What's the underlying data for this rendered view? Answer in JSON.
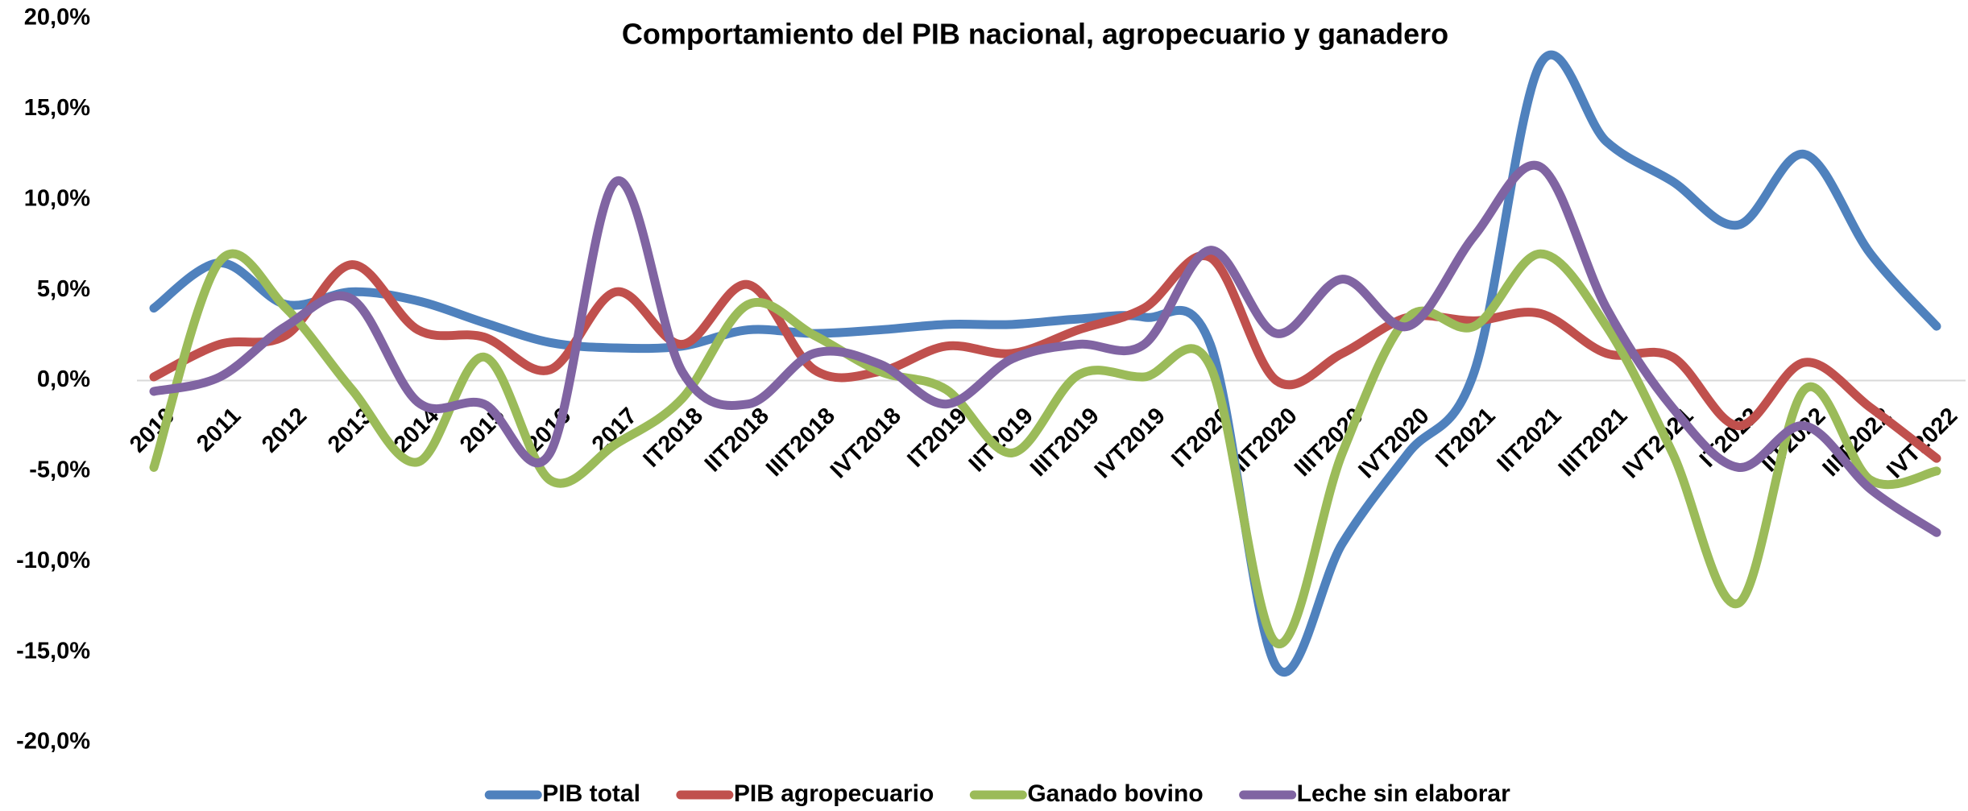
{
  "chart_data": {
    "type": "line",
    "title": "Comportamiento del PIB nacional, agropecuario y ganadero",
    "categories": [
      "2010",
      "2011",
      "2012",
      "2013",
      "2014",
      "2015",
      "2016",
      "2017",
      "IT2018",
      "IIT2018",
      "IIIT2018",
      "IVT2018",
      "IT2019",
      "IIT2019",
      "IIIT2019",
      "IVT2019",
      "IT2020",
      "IIT2020",
      "IIIT2020",
      "IVT2020",
      "IT2021",
      "IIT2021",
      "IIIT2021",
      "IVT2021",
      "IT2022",
      "IIT2022",
      "IIIT2022",
      "IVT2022"
    ],
    "series": [
      {
        "name": "PIB total",
        "color": "#4f81bd",
        "values": [
          4.0,
          6.5,
          4.2,
          4.9,
          4.4,
          3.2,
          2.1,
          1.8,
          1.9,
          2.8,
          2.6,
          2.8,
          3.1,
          3.1,
          3.4,
          3.5,
          2.0,
          -15.8,
          -9.0,
          -4.0,
          0.5,
          17.5,
          13.2,
          11.0,
          8.6,
          12.5,
          7.0,
          3.0
        ]
      },
      {
        "name": "PIB agropecuario",
        "color": "#c0504d",
        "values": [
          0.2,
          2.0,
          2.5,
          6.4,
          2.8,
          2.4,
          0.6,
          4.9,
          2.0,
          5.3,
          0.6,
          0.5,
          1.9,
          1.5,
          2.8,
          4.0,
          6.8,
          0.0,
          1.5,
          3.5,
          3.3,
          3.7,
          1.5,
          1.3,
          -2.5,
          1.0,
          -1.5,
          -4.3
        ]
      },
      {
        "name": "Ganado bovino",
        "color": "#9bbb59",
        "values": [
          -4.8,
          6.6,
          4.0,
          -0.5,
          -4.5,
          1.3,
          -5.5,
          -3.5,
          -1.0,
          4.2,
          2.5,
          0.5,
          -0.5,
          -4.0,
          0.3,
          0.2,
          0.8,
          -14.5,
          -4.0,
          3.5,
          3.0,
          7.0,
          3.0,
          -4.0,
          -12.3,
          -0.5,
          -5.5,
          -5.0
        ]
      },
      {
        "name": "Leche sin elaborar",
        "color": "#8064a2",
        "values": [
          -0.6,
          0.2,
          3.0,
          4.5,
          -1.2,
          -1.3,
          -4.0,
          11.0,
          0.5,
          -1.3,
          1.5,
          0.9,
          -1.3,
          1.2,
          2.0,
          2.0,
          7.2,
          2.6,
          5.6,
          3.0,
          8.0,
          11.8,
          4.0,
          -1.5,
          -4.8,
          -2.5,
          -6.0,
          -8.4
        ]
      }
    ],
    "ylim": [
      -20,
      20
    ],
    "yticks": [
      {
        "value": -20,
        "label": "-20,0%"
      },
      {
        "value": -15,
        "label": "-15,0%"
      },
      {
        "value": -10,
        "label": "-10,0%"
      },
      {
        "value": -5,
        "label": "-5,0%"
      },
      {
        "value": 0,
        "label": "0,0%"
      },
      {
        "value": 5,
        "label": "5,0%"
      },
      {
        "value": 10,
        "label": "10,0%"
      },
      {
        "value": 15,
        "label": "15,0%"
      },
      {
        "value": 20,
        "label": "20,0%"
      }
    ],
    "legend": "bottom"
  }
}
